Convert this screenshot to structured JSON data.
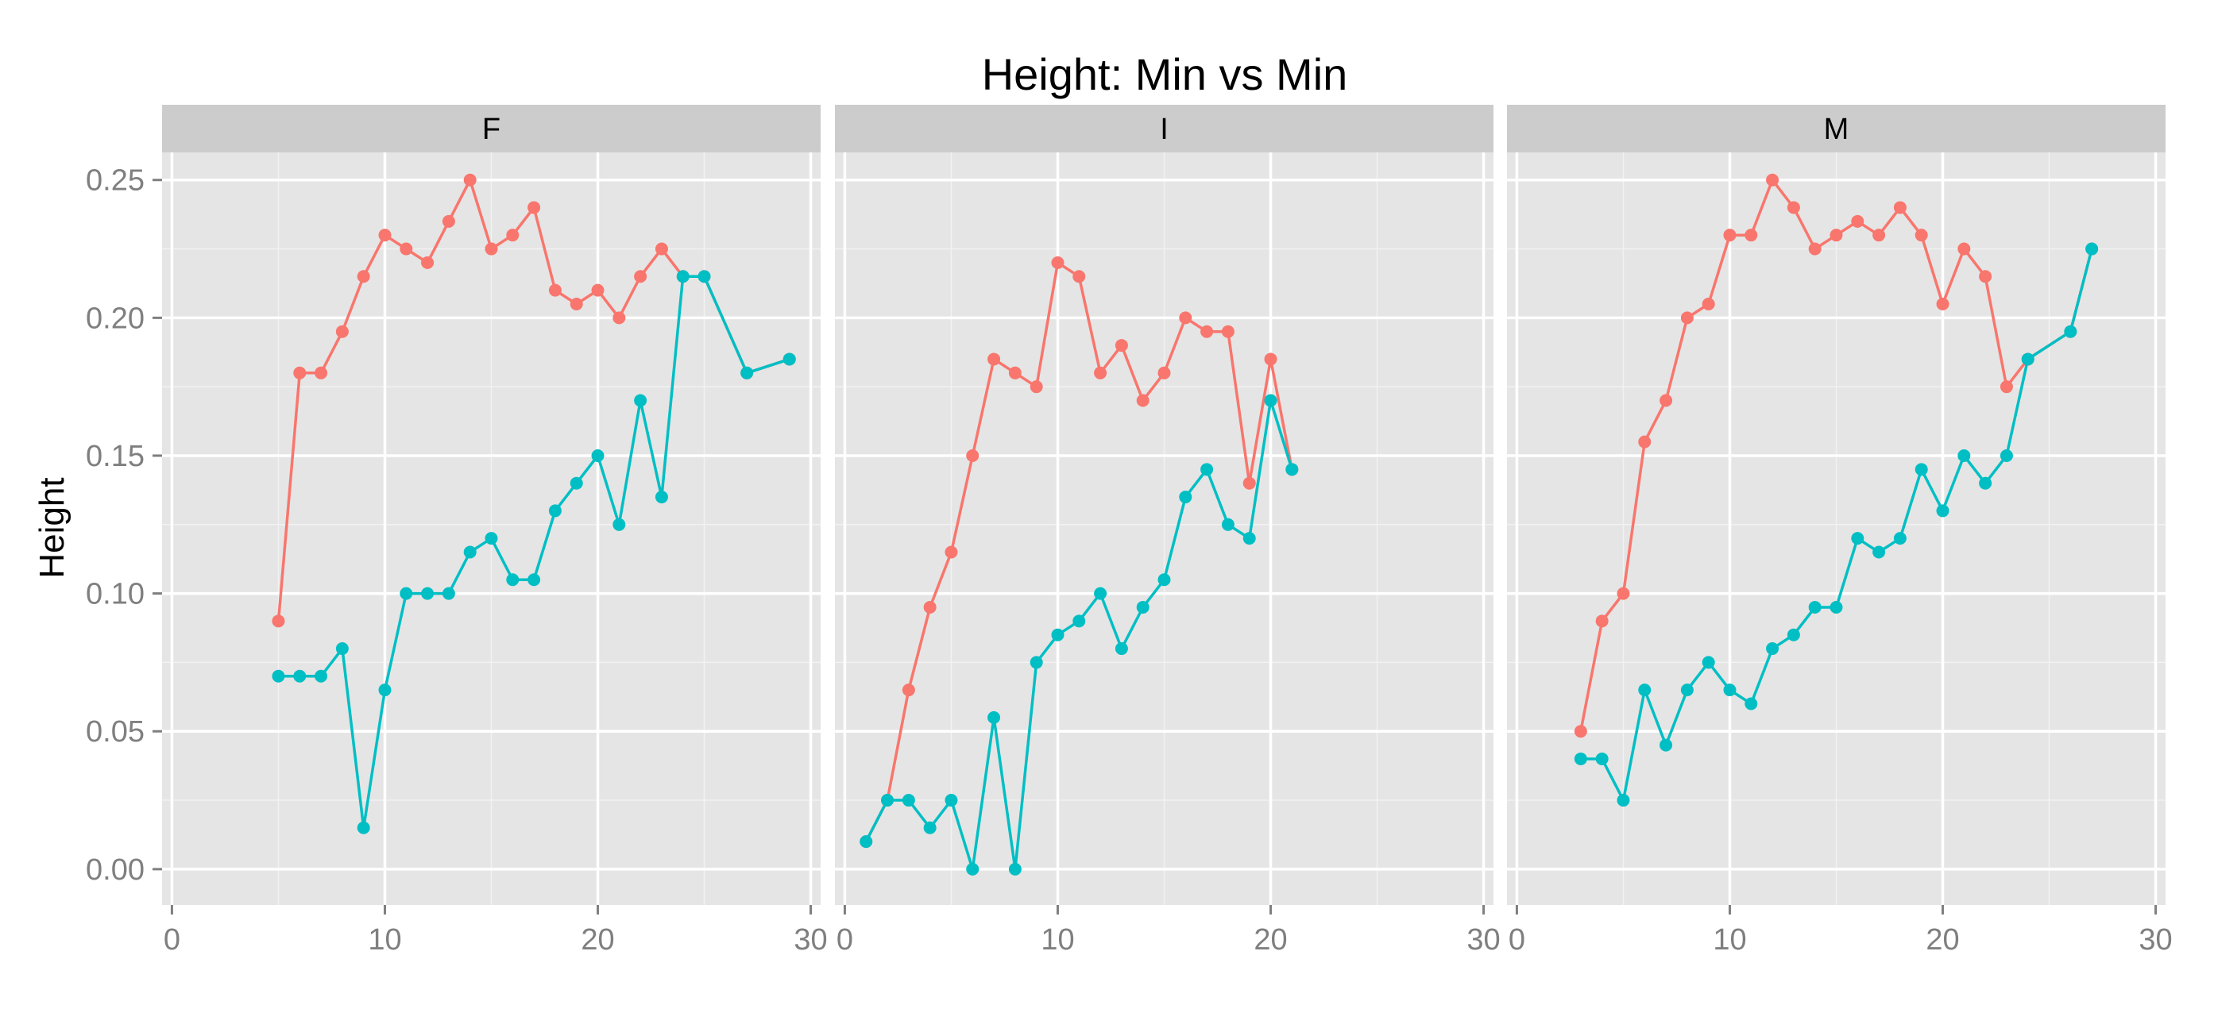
{
  "chart_data": {
    "type": "line",
    "title": "Height: Min vs Min",
    "xlabel": "",
    "ylabel": "Height",
    "xlim": [
      0,
      30
    ],
    "ylim": [
      -0.013,
      0.26
    ],
    "x_ticks": [
      0,
      10,
      20,
      30
    ],
    "x_tick_labels": [
      "0",
      "10",
      "20",
      "30"
    ],
    "y_ticks": [
      0,
      0.05,
      0.1,
      0.15,
      0.2,
      0.25
    ],
    "y_tick_labels": [
      "0.00",
      "0.05",
      "0.10",
      "0.15",
      "0.20",
      "0.25"
    ],
    "grid": true,
    "legend": "none",
    "colors": {
      "red": "#F8766D",
      "teal": "#00BFC4",
      "panel": "#E5E5E5",
      "strip": "#CCCCCC",
      "grid": "#FFFFFF",
      "text": "#7F7F7F"
    },
    "panels": [
      {
        "label": "F",
        "series": [
          {
            "color": "#F8766D",
            "x": [
              5,
              6,
              7,
              8,
              9,
              10,
              11,
              12,
              13,
              14,
              15,
              16,
              17,
              18,
              19,
              20,
              21,
              22,
              23,
              24,
              25,
              27,
              29
            ],
            "y": [
              0.09,
              0.18,
              0.18,
              0.195,
              0.215,
              0.23,
              0.225,
              0.22,
              0.235,
              0.25,
              0.225,
              0.23,
              0.24,
              0.21,
              0.205,
              0.21,
              0.2,
              0.215,
              0.225,
              0.215,
              0.215,
              0.18,
              0.185
            ]
          },
          {
            "color": "#00BFC4",
            "x": [
              5,
              6,
              7,
              8,
              9,
              10,
              11,
              12,
              13,
              14,
              15,
              16,
              17,
              18,
              19,
              20,
              21,
              22,
              23,
              24,
              25,
              27,
              29
            ],
            "y": [
              0.07,
              0.07,
              0.07,
              0.08,
              0.015,
              0.065,
              0.1,
              0.1,
              0.1,
              0.115,
              0.12,
              0.105,
              0.105,
              0.13,
              0.14,
              0.15,
              0.125,
              0.17,
              0.135,
              0.215,
              0.215,
              0.18,
              0.185
            ]
          }
        ]
      },
      {
        "label": "I",
        "series": [
          {
            "color": "#F8766D",
            "x": [
              1,
              2,
              3,
              4,
              5,
              6,
              7,
              8,
              9,
              10,
              11,
              12,
              13,
              14,
              15,
              16,
              17,
              18,
              19,
              20,
              21
            ],
            "y": [
              0.01,
              0.025,
              0.065,
              0.095,
              0.115,
              0.15,
              0.185,
              0.18,
              0.175,
              0.22,
              0.215,
              0.18,
              0.19,
              0.17,
              0.18,
              0.2,
              0.195,
              0.195,
              0.14,
              0.185,
              0.145
            ]
          },
          {
            "color": "#00BFC4",
            "x": [
              1,
              2,
              3,
              4,
              5,
              6,
              7,
              8,
              9,
              10,
              11,
              12,
              13,
              14,
              15,
              16,
              17,
              18,
              19,
              20,
              21
            ],
            "y": [
              0.01,
              0.025,
              0.025,
              0.015,
              0.025,
              0.0,
              0.055,
              0.0,
              0.075,
              0.085,
              0.09,
              0.1,
              0.08,
              0.095,
              0.105,
              0.135,
              0.145,
              0.125,
              0.12,
              0.17,
              0.145
            ]
          }
        ]
      },
      {
        "label": "M",
        "series": [
          {
            "color": "#F8766D",
            "x": [
              3,
              4,
              5,
              6,
              7,
              8,
              9,
              10,
              11,
              12,
              13,
              14,
              15,
              16,
              17,
              18,
              19,
              20,
              21,
              22,
              23,
              24,
              26,
              27
            ],
            "y": [
              0.05,
              0.09,
              0.1,
              0.155,
              0.17,
              0.2,
              0.205,
              0.23,
              0.23,
              0.25,
              0.24,
              0.225,
              0.23,
              0.235,
              0.23,
              0.24,
              0.23,
              0.205,
              0.225,
              0.215,
              0.175,
              0.185,
              0.195,
              0.225
            ]
          },
          {
            "color": "#00BFC4",
            "x": [
              3,
              4,
              5,
              6,
              7,
              8,
              9,
              10,
              11,
              12,
              13,
              14,
              15,
              16,
              17,
              18,
              19,
              20,
              21,
              22,
              23,
              24,
              26,
              27
            ],
            "y": [
              0.04,
              0.04,
              0.025,
              0.065,
              0.045,
              0.065,
              0.075,
              0.065,
              0.06,
              0.08,
              0.085,
              0.095,
              0.095,
              0.12,
              0.115,
              0.12,
              0.145,
              0.13,
              0.15,
              0.14,
              0.15,
              0.185,
              0.195,
              0.225
            ]
          }
        ]
      }
    ]
  }
}
